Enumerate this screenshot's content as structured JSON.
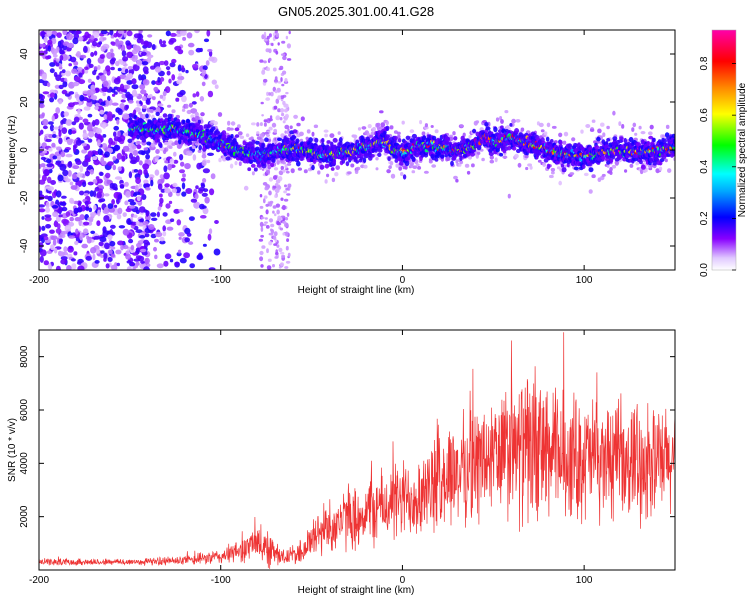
{
  "figure_title": "GN05.2025.301.00.41.G28",
  "colors": {
    "snr_line": "#ee3333",
    "colormap": [
      "#ffffff",
      "#e8ccff",
      "#7a00ff",
      "#0000ff",
      "#00ffff",
      "#00ff00",
      "#ffff00",
      "#ff8800",
      "#ff0000",
      "#ff00aa"
    ]
  },
  "chart_data": [
    {
      "type": "heatmap",
      "title": "GN05.2025.301.00.41.G28",
      "xlabel": "Height of straight line (km)",
      "ylabel": "Frequency (Hz)",
      "xlim": [
        -200,
        150
      ],
      "ylim": [
        -50,
        50
      ],
      "x_ticks": [
        -200,
        -100,
        0,
        100
      ],
      "y_ticks": [
        -40,
        -20,
        0,
        20,
        40
      ],
      "x_tick_labels": [
        "-200",
        "-100",
        "0",
        "100"
      ],
      "y_tick_labels": [
        "-40",
        "-20",
        "0",
        "20",
        "40"
      ],
      "colorbar": {
        "label": "Normalized spectral amplitude",
        "range": [
          0,
          0.93
        ],
        "ticks": [
          0.0,
          0.2,
          0.4,
          0.6,
          0.8
        ],
        "tick_labels": [
          "0.0",
          "0.2",
          "0.4",
          "0.6",
          "0.8"
        ]
      },
      "ridge_center_hz": [
        {
          "x": -150,
          "y": 9
        },
        {
          "x": -120,
          "y": 8
        },
        {
          "x": -110,
          "y": 6
        },
        {
          "x": -100,
          "y": 3
        },
        {
          "x": -90,
          "y": 0
        },
        {
          "x": -80,
          "y": -2
        },
        {
          "x": -70,
          "y": -1
        },
        {
          "x": -60,
          "y": 1
        },
        {
          "x": -50,
          "y": -1
        },
        {
          "x": -40,
          "y": -2
        },
        {
          "x": -30,
          "y": -1
        },
        {
          "x": -20,
          "y": 1
        },
        {
          "x": -10,
          "y": 4
        },
        {
          "x": -5,
          "y": 0
        },
        {
          "x": 0,
          "y": -1
        },
        {
          "x": 10,
          "y": 2
        },
        {
          "x": 20,
          "y": 1
        },
        {
          "x": 30,
          "y": 0
        },
        {
          "x": 40,
          "y": 2
        },
        {
          "x": 45,
          "y": 6
        },
        {
          "x": 50,
          "y": 3
        },
        {
          "x": 60,
          "y": 5
        },
        {
          "x": 70,
          "y": 2
        },
        {
          "x": 80,
          "y": 0
        },
        {
          "x": 90,
          "y": -2
        },
        {
          "x": 100,
          "y": -3
        },
        {
          "x": 110,
          "y": -1
        },
        {
          "x": 120,
          "y": 0
        },
        {
          "x": 130,
          "y": -1
        },
        {
          "x": 140,
          "y": 0
        },
        {
          "x": 150,
          "y": 1
        }
      ],
      "noise_region": {
        "x_from": -200,
        "x_to": -110,
        "note": "scattered low-amplitude speckle over full frequency range"
      },
      "noise_streak_x": [
        -78,
        -62
      ]
    },
    {
      "type": "line",
      "xlabel": "Height of straight line (km)",
      "ylabel": "SNR (10 * v/v)",
      "xlim": [
        -200,
        150
      ],
      "ylim": [
        0,
        9000
      ],
      "x_ticks": [
        -200,
        -100,
        0,
        100
      ],
      "y_ticks": [
        2000,
        4000,
        6000,
        8000
      ],
      "x_tick_labels": [
        "-200",
        "-100",
        "0",
        "100"
      ],
      "y_tick_labels": [
        "2000",
        "4000",
        "6000",
        "8000"
      ],
      "series": [
        {
          "name": "SNR",
          "color": "#ee3333",
          "envelope": [
            {
              "x": -200,
              "mean": 300,
              "spread": 150
            },
            {
              "x": -150,
              "mean": 300,
              "spread": 150
            },
            {
              "x": -120,
              "mean": 350,
              "spread": 200
            },
            {
              "x": -100,
              "mean": 500,
              "spread": 350
            },
            {
              "x": -90,
              "mean": 700,
              "spread": 500
            },
            {
              "x": -80,
              "mean": 1000,
              "spread": 800
            },
            {
              "x": -75,
              "mean": 900,
              "spread": 1000
            },
            {
              "x": -65,
              "mean": 450,
              "spread": 300
            },
            {
              "x": -55,
              "mean": 700,
              "spread": 600
            },
            {
              "x": -45,
              "mean": 1500,
              "spread": 1200
            },
            {
              "x": -35,
              "mean": 1800,
              "spread": 1300
            },
            {
              "x": -25,
              "mean": 2000,
              "spread": 1400
            },
            {
              "x": -15,
              "mean": 2300,
              "spread": 1600
            },
            {
              "x": 0,
              "mean": 2600,
              "spread": 1800
            },
            {
              "x": 15,
              "mean": 3000,
              "spread": 2000
            },
            {
              "x": 25,
              "mean": 3500,
              "spread": 2200
            },
            {
              "x": 40,
              "mean": 4000,
              "spread": 2600
            },
            {
              "x": 55,
              "mean": 4300,
              "spread": 3000
            },
            {
              "x": 70,
              "mean": 4500,
              "spread": 3300
            },
            {
              "x": 85,
              "mean": 4300,
              "spread": 3000
            },
            {
              "x": 100,
              "mean": 4200,
              "spread": 2800
            },
            {
              "x": 120,
              "mean": 4000,
              "spread": 2500
            },
            {
              "x": 150,
              "mean": 4000,
              "spread": 2500
            }
          ]
        }
      ]
    }
  ]
}
